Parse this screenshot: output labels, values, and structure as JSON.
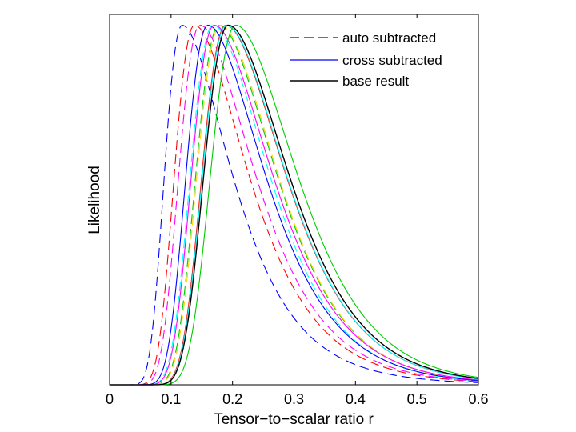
{
  "chart_data": {
    "type": "line",
    "xlabel": "Tensor−to−scalar ratio r",
    "ylabel": "Likelihood",
    "xlim": [
      0,
      0.6
    ],
    "ylim": [
      0,
      1.03
    ],
    "xticks": [
      "0",
      "0.1",
      "0.2",
      "0.3",
      "0.4",
      "0.5",
      "0.6"
    ],
    "grid": false,
    "legend_position": "top-right",
    "legend": [
      {
        "label": "auto subtracted",
        "style": "dashed",
        "color": "#0000ff"
      },
      {
        "label": "cross subtracted",
        "style": "solid",
        "color": "#0000ff"
      },
      {
        "label": "base result",
        "style": "solid",
        "color": "#000000"
      }
    ],
    "series": [
      {
        "color": "#0000ff",
        "style": "dashed",
        "peak_r": 0.118,
        "width_low": 0.032,
        "width_high": 0.06
      },
      {
        "color": "#ff0000",
        "style": "dashed",
        "peak_r": 0.138,
        "width_low": 0.036,
        "width_high": 0.066
      },
      {
        "color": "#ff00ff",
        "style": "dashed",
        "peak_r": 0.147,
        "width_low": 0.038,
        "width_high": 0.068
      },
      {
        "color": "#00ffff",
        "style": "dashed",
        "peak_r": 0.168,
        "width_low": 0.04,
        "width_high": 0.071
      },
      {
        "color": "#00cc00",
        "style": "dashed",
        "peak_r": 0.178,
        "width_low": 0.041,
        "width_high": 0.073
      },
      {
        "color": "#ffd400",
        "style": "dashed",
        "peak_r": 0.18,
        "width_low": 0.041,
        "width_high": 0.073
      },
      {
        "color": "#0000ff",
        "style": "solid",
        "peak_r": 0.16,
        "width_low": 0.039,
        "width_high": 0.071
      },
      {
        "color": "#ff00ff",
        "style": "solid",
        "peak_r": 0.17,
        "width_low": 0.04,
        "width_high": 0.073
      },
      {
        "color": "#ff0000",
        "style": "solid",
        "peak_r": 0.189,
        "width_low": 0.042,
        "width_high": 0.076
      },
      {
        "color": "#00ffff",
        "style": "solid",
        "peak_r": 0.19,
        "width_low": 0.042,
        "width_high": 0.076
      },
      {
        "color": "#00cc00",
        "style": "solid",
        "peak_r": 0.205,
        "width_low": 0.044,
        "width_high": 0.079
      },
      {
        "color": "#000000",
        "style": "solid",
        "peak_r": 0.193,
        "width_low": 0.043,
        "width_high": 0.077
      }
    ]
  }
}
